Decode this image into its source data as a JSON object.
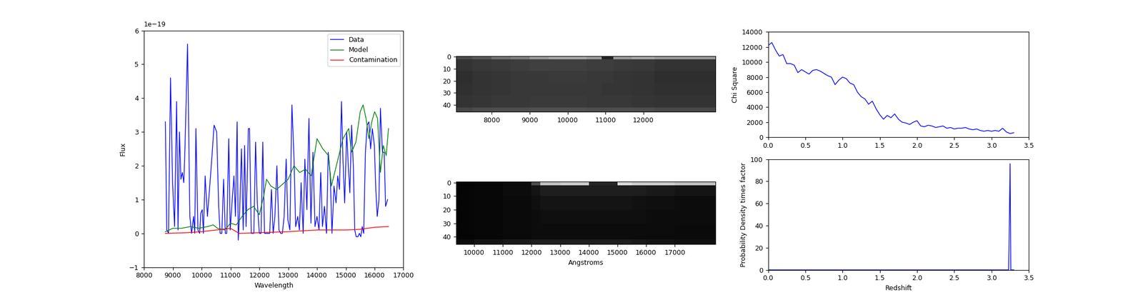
{
  "chart_data": [
    {
      "type": "line",
      "xlabel": "Wavelength",
      "ylabel": "Flux",
      "y_multiplier_text": "1e−19",
      "xlim": [
        8000,
        17000
      ],
      "ylim": [
        -1,
        6
      ],
      "xticks": [
        8000,
        9000,
        10000,
        11000,
        12000,
        13000,
        14000,
        15000,
        16000,
        17000
      ],
      "yticks": [
        {
          "value": -1,
          "label": "−1"
        },
        0,
        1,
        2,
        3,
        4,
        5,
        6
      ],
      "legend": "upper right",
      "series": [
        {
          "name": "Data",
          "color": "#0000ff",
          "x": [
            8740,
            8790,
            8850,
            8920,
            8990,
            9060,
            9130,
            9180,
            9230,
            9280,
            9330,
            9380,
            9420,
            9510,
            9590,
            9650,
            9720,
            9760,
            9800,
            9870,
            9930,
            9970,
            10020,
            10060,
            10120,
            10200,
            10280,
            10350,
            10430,
            10520,
            10590,
            10640,
            10700,
            10760,
            10820,
            10870,
            10940,
            10990,
            11060,
            11120,
            11170,
            11230,
            11270,
            11320,
            11380,
            11440,
            11490,
            11540,
            11620,
            11660,
            11720,
            11810,
            11870,
            11930,
            12000,
            12060,
            12120,
            12180,
            12240,
            12300,
            12360,
            12420,
            12480,
            12540,
            12610,
            12680,
            12740,
            12800,
            12860,
            12930,
            12990,
            13060,
            13130,
            13200,
            13260,
            13330,
            13390,
            13450,
            13520,
            13580,
            13650,
            13720,
            13790,
            13860,
            13930,
            14000,
            14070,
            14130,
            14190,
            14260,
            14330,
            14390,
            14460,
            14520,
            14590,
            14660,
            14720,
            14780,
            14850,
            14900,
            14960,
            15030,
            15080,
            15140,
            15200,
            15260,
            15310,
            15360,
            15420,
            15470,
            15520,
            15570,
            15620,
            15680,
            15740,
            15800,
            15860,
            15920,
            15990,
            16040,
            16090,
            16150,
            16200,
            16270,
            16330,
            16380,
            16450
          ],
          "values": [
            3.3,
            0.1,
            0.0,
            4.6,
            1.5,
            0.2,
            3.9,
            0.1,
            3.0,
            1.6,
            1.8,
            1.5,
            2.5,
            5.6,
            0.5,
            0.0,
            0.5,
            0.0,
            3.1,
            0.1,
            0.0,
            0.6,
            0.7,
            0.0,
            1.7,
            0.5,
            1.4,
            2.2,
            3.2,
            3.0,
            0.8,
            0.0,
            0.0,
            1.6,
            0.0,
            0.0,
            2.8,
            0.1,
            1.0,
            1.7,
            0.5,
            3.3,
            -0.2,
            0.7,
            2.5,
            0.1,
            2.6,
            0.2,
            3.1,
            3.1,
            0.0,
            0.0,
            2.7,
            0.9,
            0.0,
            0.0,
            2.7,
            0.0,
            0.0,
            0.0,
            0.0,
            1.3,
            0.0,
            0.5,
            2.0,
            0.1,
            0.0,
            0.0,
            0.5,
            2.2,
            0.4,
            0.1,
            3.8,
            2.3,
            0.2,
            0.5,
            0.1,
            1.5,
            0.0,
            2.2,
            0.7,
            3.4,
            0.3,
            2.4,
            0.2,
            0.5,
            0.1,
            1.8,
            0.2,
            0.8,
            0.0,
            2.4,
            1.7,
            0.0,
            1.4,
            0.9,
            1.7,
            1.3,
            3.9,
            2.2,
            0.9,
            3.0,
            2.1,
            1.2,
            3.2,
            2.0,
            0.1,
            -0.1,
            -0.1,
            0.0,
            -0.1,
            0.2,
            0.0,
            2.4,
            3.2,
            3.3,
            2.5,
            3.1,
            2.6,
            1.3,
            0.5,
            1.0,
            3.7,
            2.4,
            2.4,
            0.8,
            1.0
          ]
        },
        {
          "name": "Model",
          "color": "#008000",
          "x": [
            8740,
            9000,
            9300,
            9600,
            9900,
            10200,
            10400,
            10550,
            10800,
            11000,
            11200,
            11400,
            11600,
            11800,
            12000,
            12150,
            12250,
            12400,
            12600,
            12800,
            13000,
            13200,
            13400,
            13600,
            13800,
            14000,
            14200,
            14400,
            14500,
            14700,
            14900,
            15100,
            15200,
            15350,
            15500,
            15600,
            15700,
            15800,
            15900,
            16000,
            16100,
            16200,
            16300,
            16400,
            16480
          ],
          "values": [
            0.05,
            0.15,
            0.15,
            0.2,
            0.15,
            0.2,
            0.25,
            0.15,
            0.1,
            0.3,
            0.25,
            0.5,
            0.7,
            0.8,
            0.55,
            1.1,
            1.6,
            1.4,
            1.3,
            1.45,
            1.6,
            2.0,
            1.8,
            1.9,
            1.7,
            2.8,
            2.5,
            2.3,
            1.4,
            2.1,
            2.8,
            3.1,
            2.4,
            2.7,
            3.6,
            3.8,
            3.4,
            2.8,
            3.3,
            3.6,
            3.4,
            1.8,
            2.6,
            2.3,
            3.1
          ]
        },
        {
          "name": "Contamination",
          "color": "#ff0000",
          "x": [
            8740,
            9500,
            10000,
            10500,
            11000,
            11300,
            12000,
            13000,
            14000,
            15000,
            15500,
            16000,
            16480
          ],
          "values": [
            0.0,
            0.02,
            0.05,
            0.1,
            0.15,
            0.0,
            0.02,
            0.05,
            0.1,
            0.1,
            0.12,
            0.18,
            0.2
          ]
        }
      ]
    },
    {
      "type": "image",
      "xlim": [
        7060,
        13900
      ],
      "ylim": [
        45.5,
        -0.5
      ],
      "xticks": [
        8000,
        9000,
        10000,
        11000,
        12000
      ],
      "yticks": [
        0,
        10,
        20,
        30,
        40
      ],
      "x_edges": [
        7060,
        7500,
        8000,
        8500,
        9000,
        9500,
        10000,
        10500,
        10900,
        11200,
        11700,
        12300,
        13900
      ],
      "y_edges": [
        -0.5,
        2,
        12,
        22,
        32,
        42,
        45.5
      ],
      "clim": [
        0,
        1
      ],
      "cells": [
        [
          0.3,
          0.35,
          0.45,
          0.5,
          0.6,
          0.65,
          0.65,
          0.6,
          0.15,
          0.6,
          0.65,
          0.6
        ],
        [
          0.2,
          0.22,
          0.23,
          0.24,
          0.25,
          0.25,
          0.25,
          0.24,
          0.24,
          0.23,
          0.22,
          0.2
        ],
        [
          0.18,
          0.2,
          0.21,
          0.22,
          0.22,
          0.23,
          0.23,
          0.22,
          0.22,
          0.21,
          0.2,
          0.18
        ],
        [
          0.19,
          0.2,
          0.21,
          0.22,
          0.22,
          0.22,
          0.22,
          0.22,
          0.21,
          0.21,
          0.2,
          0.19
        ],
        [
          0.2,
          0.21,
          0.22,
          0.22,
          0.23,
          0.23,
          0.23,
          0.22,
          0.22,
          0.22,
          0.21,
          0.2
        ],
        [
          0.28,
          0.3,
          0.3,
          0.3,
          0.31,
          0.31,
          0.31,
          0.3,
          0.3,
          0.3,
          0.3,
          0.28
        ]
      ]
    },
    {
      "type": "image",
      "xlabel": "Angstroms",
      "xlim": [
        9370,
        18420
      ],
      "ylim": [
        45.5,
        -0.5
      ],
      "xticks": [
        10000,
        11000,
        12000,
        13000,
        14000,
        15000,
        16000,
        17000
      ],
      "yticks": [
        0,
        10,
        20,
        30,
        40
      ],
      "x_edges": [
        9370,
        10000,
        11000,
        12000,
        12300,
        13000,
        14000,
        15000,
        15500,
        16000,
        17000,
        18420
      ],
      "y_edges": [
        -0.5,
        2,
        10,
        20,
        30,
        42,
        45.5
      ],
      "clim": [
        0,
        1
      ],
      "cells": [
        [
          0.02,
          0.03,
          0.05,
          0.3,
          0.75,
          0.8,
          0.15,
          0.85,
          0.8,
          0.8,
          0.75
        ],
        [
          0.02,
          0.03,
          0.05,
          0.08,
          0.12,
          0.12,
          0.12,
          0.12,
          0.12,
          0.1,
          0.08
        ],
        [
          0.02,
          0.03,
          0.04,
          0.06,
          0.08,
          0.08,
          0.08,
          0.08,
          0.07,
          0.06,
          0.05
        ],
        [
          0.02,
          0.03,
          0.04,
          0.05,
          0.06,
          0.06,
          0.06,
          0.06,
          0.06,
          0.05,
          0.05
        ],
        [
          0.02,
          0.03,
          0.04,
          0.05,
          0.05,
          0.05,
          0.05,
          0.05,
          0.05,
          0.05,
          0.04
        ],
        [
          0.05,
          0.08,
          0.1,
          0.12,
          0.12,
          0.12,
          0.12,
          0.12,
          0.1,
          0.08,
          0.06
        ]
      ]
    },
    {
      "type": "line",
      "ylabel": "Chi Square",
      "color": "#0000ff",
      "xlim": [
        0.0,
        3.5
      ],
      "ylim": [
        0,
        14000
      ],
      "xticks": [
        0.0,
        0.5,
        1.0,
        1.5,
        2.0,
        2.5,
        3.0,
        3.5
      ],
      "yticks": [
        0,
        2000,
        4000,
        6000,
        8000,
        10000,
        12000,
        14000
      ],
      "x": [
        0.0,
        0.05,
        0.1,
        0.15,
        0.2,
        0.25,
        0.3,
        0.35,
        0.4,
        0.45,
        0.5,
        0.55,
        0.6,
        0.65,
        0.7,
        0.75,
        0.8,
        0.85,
        0.9,
        0.95,
        1.0,
        1.05,
        1.1,
        1.15,
        1.2,
        1.25,
        1.3,
        1.35,
        1.4,
        1.45,
        1.5,
        1.55,
        1.6,
        1.65,
        1.7,
        1.75,
        1.8,
        1.85,
        1.9,
        1.95,
        2.0,
        2.05,
        2.1,
        2.15,
        2.2,
        2.25,
        2.3,
        2.35,
        2.4,
        2.45,
        2.5,
        2.55,
        2.6,
        2.65,
        2.7,
        2.75,
        2.8,
        2.85,
        2.9,
        2.95,
        3.0,
        3.05,
        3.1,
        3.15,
        3.2,
        3.25,
        3.3
      ],
      "values": [
        12200,
        12600,
        11600,
        10800,
        11000,
        9800,
        9800,
        9600,
        8600,
        9000,
        8700,
        8400,
        8900,
        9000,
        8800,
        8500,
        8200,
        8000,
        7000,
        7600,
        8000,
        7800,
        7200,
        7000,
        6000,
        5400,
        5100,
        4400,
        4800,
        3800,
        3000,
        2400,
        2900,
        2600,
        3100,
        2400,
        2000,
        1900,
        1700,
        2000,
        2200,
        1500,
        1400,
        1600,
        1500,
        1300,
        1400,
        1500,
        1200,
        1300,
        1100,
        1200,
        1200,
        1300,
        1100,
        1000,
        1100,
        900,
        800,
        900,
        800,
        900,
        800,
        1200,
        700,
        500,
        600
      ]
    },
    {
      "type": "line",
      "xlabel": "Redshift",
      "ylabel": "Probability Density times factor",
      "color": "#0000ff",
      "xlim": [
        0.0,
        3.5
      ],
      "ylim": [
        0,
        100
      ],
      "xticks": [
        0.0,
        0.5,
        1.0,
        1.5,
        2.0,
        2.5,
        3.0,
        3.5
      ],
      "yticks": [
        0,
        20,
        40,
        60,
        80,
        100
      ],
      "x": [
        0.0,
        3.2,
        3.23,
        3.24,
        3.25,
        3.26,
        3.27,
        3.3
      ],
      "values": [
        0,
        0,
        0,
        40,
        96,
        0,
        0,
        0
      ]
    }
  ]
}
